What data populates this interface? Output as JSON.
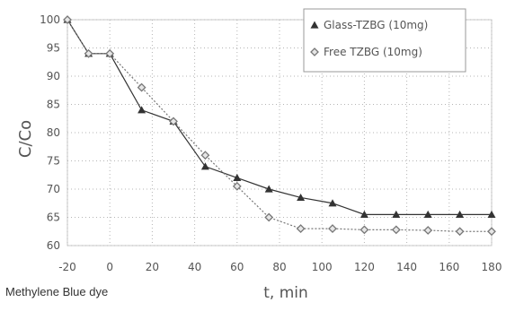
{
  "caption": "Methylene Blue dye",
  "chart_data": {
    "type": "line",
    "title": "",
    "xlabel": "t, min",
    "ylabel": "C/Co",
    "xlim": [
      -20,
      180
    ],
    "ylim": [
      60,
      100
    ],
    "xticks": [
      -20,
      0,
      20,
      40,
      60,
      80,
      100,
      120,
      140,
      160,
      180
    ],
    "xtick_labels": [
      "-20",
      "0",
      "20",
      "40",
      "60",
      "80",
      "100",
      "120",
      "140",
      "160",
      "180"
    ],
    "yticks": [
      60,
      65,
      70,
      75,
      80,
      85,
      90,
      95,
      100
    ],
    "ytick_labels": [
      "60",
      "65",
      "70",
      "75",
      "80",
      "85",
      "90",
      "95",
      "100"
    ],
    "grid": true,
    "legend_position": "top-right",
    "series": [
      {
        "name": "Glass-TZBG (10mg)",
        "marker": "triangle",
        "color": "#333333",
        "x": [
          -20,
          -10,
          0,
          15,
          30,
          45,
          60,
          75,
          90,
          105,
          120,
          135,
          150,
          165,
          180
        ],
        "y": [
          100,
          94,
          94,
          84,
          82,
          74,
          72,
          70,
          68.5,
          67.5,
          65.5,
          65.5,
          65.5,
          65.5,
          65.5
        ]
      },
      {
        "name": "Free TZBG (10mg)",
        "marker": "diamond",
        "color": "#777777",
        "x": [
          -20,
          -10,
          0,
          15,
          30,
          45,
          60,
          75,
          90,
          105,
          120,
          135,
          150,
          165,
          180
        ],
        "y": [
          100,
          94,
          94,
          88,
          82,
          76,
          70.5,
          65,
          63,
          63,
          62.8,
          62.8,
          62.7,
          62.5,
          62.5
        ]
      }
    ]
  }
}
